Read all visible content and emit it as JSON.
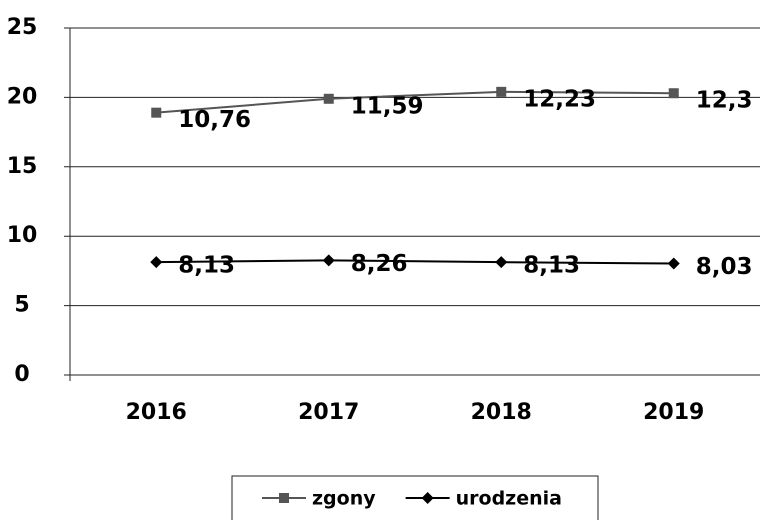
{
  "chart_data": {
    "type": "line",
    "categories": [
      "2016",
      "2017",
      "2018",
      "2019"
    ],
    "series": [
      {
        "name": "zgony",
        "color": "#555555",
        "marker": "square",
        "values": [
          18.9,
          19.9,
          20.4,
          20.3
        ],
        "annotations": [
          "10,76",
          "11,59",
          "12,23",
          "12,3"
        ]
      },
      {
        "name": "urodzenia",
        "color": "#000000",
        "marker": "diamond",
        "values": [
          8.13,
          8.26,
          8.13,
          8.03
        ],
        "value_labels": [
          "8,13",
          "8,26",
          "8,13",
          "8,03"
        ]
      }
    ],
    "ylim": [
      0,
      25
    ],
    "yticks": [
      0,
      5,
      10,
      15,
      20,
      25
    ],
    "grid": true,
    "legend": "bottom"
  }
}
